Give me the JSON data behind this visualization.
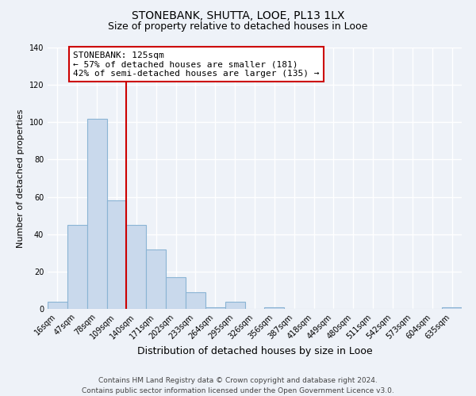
{
  "title": "STONEBANK, SHUTTA, LOOE, PL13 1LX",
  "subtitle": "Size of property relative to detached houses in Looe",
  "xlabel": "Distribution of detached houses by size in Looe",
  "ylabel": "Number of detached properties",
  "bin_labels": [
    "16sqm",
    "47sqm",
    "78sqm",
    "109sqm",
    "140sqm",
    "171sqm",
    "202sqm",
    "233sqm",
    "264sqm",
    "295sqm",
    "326sqm",
    "356sqm",
    "387sqm",
    "418sqm",
    "449sqm",
    "480sqm",
    "511sqm",
    "542sqm",
    "573sqm",
    "604sqm",
    "635sqm"
  ],
  "bar_heights": [
    4,
    45,
    102,
    58,
    45,
    32,
    17,
    9,
    1,
    4,
    0,
    1,
    0,
    0,
    0,
    0,
    0,
    0,
    0,
    0,
    1
  ],
  "bar_color": "#c9d9ec",
  "bar_edgecolor": "#8ab4d4",
  "bar_linewidth": 0.8,
  "vline_x": 3.5,
  "vline_color": "#cc0000",
  "vline_linewidth": 1.5,
  "annotation_title": "STONEBANK: 125sqm",
  "annotation_line1": "← 57% of detached houses are smaller (181)",
  "annotation_line2": "42% of semi-detached houses are larger (135) →",
  "annotation_box_facecolor": "#ffffff",
  "annotation_box_edgecolor": "#cc0000",
  "ylim": [
    0,
    140
  ],
  "yticks": [
    0,
    20,
    40,
    60,
    80,
    100,
    120,
    140
  ],
  "background_color": "#eef2f8",
  "grid_color": "#ffffff",
  "footer_line1": "Contains HM Land Registry data © Crown copyright and database right 2024.",
  "footer_line2": "Contains public sector information licensed under the Open Government Licence v3.0.",
  "title_fontsize": 10,
  "subtitle_fontsize": 9,
  "xlabel_fontsize": 9,
  "ylabel_fontsize": 8,
  "tick_fontsize": 7,
  "footer_fontsize": 6.5,
  "annotation_fontsize": 8
}
